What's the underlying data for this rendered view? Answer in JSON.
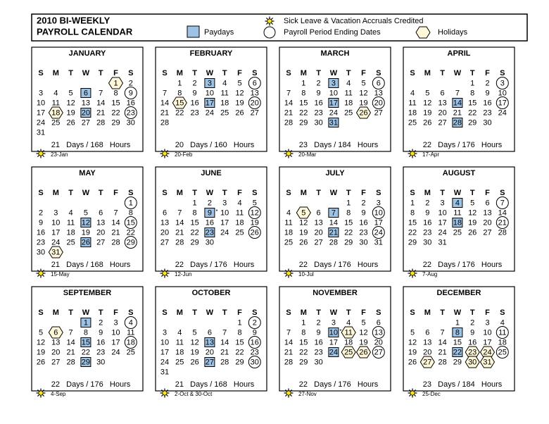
{
  "header": {
    "title_line1": "2010 BI-WEEKLY",
    "title_line2": "PAYROLL CALENDAR",
    "legend": {
      "paydays": "Paydays",
      "accruals": "Sick Leave & Vacation Accruals Credited",
      "period_end": "Payroll Period Ending Dates",
      "holidays": "Holidays"
    }
  },
  "weekdays": [
    "S",
    "M",
    "T",
    "W",
    "T",
    "F",
    "S"
  ],
  "star_text": "*",
  "months": [
    {
      "name": "JANUARY",
      "weeks": [
        [
          null,
          null,
          null,
          null,
          null,
          1,
          2
        ],
        [
          3,
          4,
          5,
          6,
          7,
          8,
          9
        ],
        [
          10,
          11,
          12,
          13,
          14,
          15,
          16
        ],
        [
          17,
          18,
          19,
          20,
          21,
          22,
          23
        ],
        [
          24,
          25,
          26,
          27,
          28,
          29,
          30
        ],
        [
          31,
          null,
          null,
          null,
          null,
          null,
          null
        ]
      ],
      "paydays": [
        6,
        20
      ],
      "period_ends": [
        9,
        23
      ],
      "holidays": [
        1,
        18
      ],
      "starred": [],
      "summary": "21   Days / 168   Hours",
      "accrual": "23-Jan"
    },
    {
      "name": "FEBRUARY",
      "weeks": [
        [
          null,
          1,
          2,
          3,
          4,
          5,
          6
        ],
        [
          7,
          8,
          9,
          10,
          11,
          12,
          13
        ],
        [
          14,
          15,
          16,
          17,
          18,
          19,
          20
        ],
        [
          21,
          22,
          23,
          24,
          25,
          26,
          27
        ],
        [
          28,
          null,
          null,
          null,
          null,
          null,
          null
        ]
      ],
      "paydays": [
        3,
        17
      ],
      "period_ends": [
        6,
        20
      ],
      "holidays": [
        15
      ],
      "starred": [],
      "summary": "20   Days / 160   Hours",
      "accrual": "20-Feb"
    },
    {
      "name": "MARCH",
      "weeks": [
        [
          null,
          1,
          2,
          3,
          4,
          5,
          6
        ],
        [
          7,
          8,
          9,
          10,
          11,
          12,
          13
        ],
        [
          14,
          15,
          16,
          17,
          18,
          19,
          20
        ],
        [
          21,
          22,
          23,
          24,
          25,
          26,
          27
        ],
        [
          28,
          29,
          30,
          31,
          null,
          null,
          null
        ]
      ],
      "paydays": [
        3,
        17,
        31
      ],
      "period_ends": [
        6,
        20
      ],
      "holidays": [
        26
      ],
      "starred": [],
      "summary": "23   Days / 184   Hours",
      "accrual": "20-Mar"
    },
    {
      "name": "APRIL",
      "weeks": [
        [
          null,
          null,
          null,
          null,
          1,
          2,
          3
        ],
        [
          4,
          5,
          6,
          7,
          8,
          9,
          10
        ],
        [
          11,
          12,
          13,
          14,
          15,
          16,
          17
        ],
        [
          18,
          19,
          20,
          21,
          22,
          23,
          24
        ],
        [
          25,
          26,
          27,
          28,
          29,
          30,
          null
        ]
      ],
      "paydays": [
        14,
        28
      ],
      "period_ends": [
        3,
        17
      ],
      "holidays": [],
      "starred": [],
      "summary": "22   Days / 176   Hours",
      "accrual": "17-Apr"
    },
    {
      "name": "MAY",
      "weeks": [
        [
          null,
          null,
          null,
          null,
          null,
          null,
          1
        ],
        [
          2,
          3,
          4,
          5,
          6,
          7,
          8
        ],
        [
          9,
          10,
          11,
          12,
          13,
          14,
          15
        ],
        [
          16,
          17,
          18,
          19,
          20,
          21,
          22
        ],
        [
          23,
          24,
          25,
          26,
          27,
          28,
          29
        ],
        [
          30,
          31,
          null,
          null,
          null,
          null,
          null
        ]
      ],
      "paydays": [
        12,
        26
      ],
      "period_ends": [
        1,
        15,
        29
      ],
      "holidays": [
        31
      ],
      "starred": [],
      "summary": "21   Days / 168   Hours",
      "accrual": "15-May"
    },
    {
      "name": "JUNE",
      "weeks": [
        [
          null,
          null,
          1,
          2,
          3,
          4,
          5
        ],
        [
          6,
          7,
          8,
          9,
          10,
          11,
          12
        ],
        [
          13,
          14,
          15,
          16,
          17,
          18,
          19
        ],
        [
          20,
          21,
          22,
          23,
          24,
          25,
          26
        ],
        [
          27,
          28,
          29,
          30,
          null,
          null,
          null
        ]
      ],
      "paydays": [
        9,
        23
      ],
      "period_ends": [
        12,
        26
      ],
      "holidays": [],
      "starred": [
        9
      ],
      "summary": "22   Days / 176   Hours",
      "accrual": "12-Jun"
    },
    {
      "name": "JULY",
      "weeks": [
        [
          null,
          null,
          null,
          null,
          1,
          2,
          3
        ],
        [
          4,
          5,
          6,
          7,
          8,
          9,
          10
        ],
        [
          11,
          12,
          13,
          14,
          15,
          16,
          17
        ],
        [
          18,
          19,
          20,
          21,
          22,
          23,
          24
        ],
        [
          25,
          26,
          27,
          28,
          29,
          30,
          31
        ]
      ],
      "paydays": [
        7,
        21
      ],
      "period_ends": [
        10,
        24
      ],
      "holidays": [
        5
      ],
      "starred": [],
      "summary": "22   Days / 176   Hours",
      "accrual": "10-Jul"
    },
    {
      "name": "AUGUST",
      "weeks": [
        [
          1,
          2,
          3,
          4,
          5,
          6,
          7
        ],
        [
          8,
          9,
          10,
          11,
          12,
          13,
          14
        ],
        [
          15,
          16,
          17,
          18,
          19,
          20,
          21
        ],
        [
          22,
          23,
          24,
          25,
          26,
          27,
          28
        ],
        [
          29,
          30,
          31,
          null,
          null,
          null,
          null
        ]
      ],
      "paydays": [
        4,
        18
      ],
      "period_ends": [
        7,
        21
      ],
      "holidays": [],
      "starred": [],
      "summary": "22   Days / 176   Hours",
      "accrual": "7-Aug"
    },
    {
      "name": "SEPTEMBER",
      "weeks": [
        [
          null,
          null,
          null,
          1,
          2,
          3,
          4
        ],
        [
          5,
          6,
          7,
          8,
          9,
          10,
          11
        ],
        [
          12,
          13,
          14,
          15,
          16,
          17,
          18
        ],
        [
          19,
          20,
          21,
          22,
          23,
          24,
          25
        ],
        [
          26,
          27,
          28,
          29,
          30,
          null,
          null
        ]
      ],
      "paydays": [
        1,
        15,
        29
      ],
      "period_ends": [
        4,
        18
      ],
      "holidays": [
        6
      ],
      "starred": [],
      "summary": "22   Days / 176   Hours",
      "accrual": "4-Sep"
    },
    {
      "name": "OCTOBER",
      "weeks": [
        [
          null,
          null,
          null,
          null,
          null,
          1,
          2
        ],
        [
          3,
          4,
          5,
          6,
          7,
          8,
          9
        ],
        [
          10,
          11,
          12,
          13,
          14,
          15,
          16
        ],
        [
          17,
          18,
          19,
          20,
          21,
          22,
          23
        ],
        [
          24,
          25,
          26,
          27,
          28,
          29,
          30
        ],
        [
          31,
          null,
          null,
          null,
          null,
          null,
          null
        ]
      ],
      "paydays": [
        13,
        27
      ],
      "period_ends": [
        2,
        16,
        30
      ],
      "holidays": [],
      "starred": [],
      "summary": "21   Days / 168   Hours",
      "accrual": "2-Oct & 30-Oct"
    },
    {
      "name": "NOVEMBER",
      "weeks": [
        [
          null,
          1,
          2,
          3,
          4,
          5,
          6
        ],
        [
          7,
          8,
          9,
          10,
          11,
          12,
          13
        ],
        [
          14,
          15,
          16,
          17,
          18,
          19,
          20
        ],
        [
          21,
          22,
          23,
          24,
          25,
          26,
          27
        ],
        [
          28,
          29,
          30,
          null,
          null,
          null,
          null
        ]
      ],
      "paydays": [
        10,
        24
      ],
      "period_ends": [
        13,
        27
      ],
      "holidays": [
        11,
        25,
        26
      ],
      "starred": [
        10
      ],
      "summary": "22   Days / 176   Hours",
      "accrual": "27-Nov"
    },
    {
      "name": "DECEMBER",
      "weeks": [
        [
          null,
          null,
          null,
          1,
          2,
          3,
          4
        ],
        [
          5,
          6,
          7,
          8,
          9,
          10,
          11
        ],
        [
          12,
          13,
          14,
          15,
          16,
          17,
          18
        ],
        [
          19,
          20,
          21,
          22,
          23,
          24,
          25
        ],
        [
          26,
          27,
          28,
          29,
          30,
          31,
          null
        ]
      ],
      "paydays": [
        8,
        22
      ],
      "period_ends": [
        11,
        25
      ],
      "holidays": [
        23,
        24,
        27,
        30,
        31
      ],
      "starred": [],
      "summary": "23   Days / 184   Hours",
      "accrual": "25-Dec"
    }
  ]
}
